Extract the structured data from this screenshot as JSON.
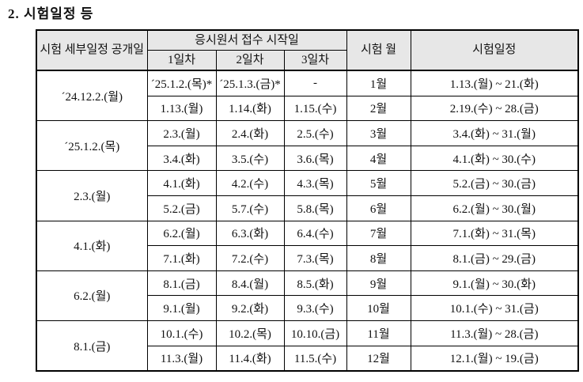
{
  "section": {
    "title": "2. 시험일정 등"
  },
  "table": {
    "header": {
      "release": "시험 세부일정 공개일",
      "application": "응시원서 접수 시작일",
      "day1": "1일차",
      "day2": "2일차",
      "day3": "3일차",
      "month": "시험 월",
      "schedule": "시험일정"
    },
    "releases": [
      "´24.12.2.(월)",
      "´25.1.2.(목)",
      "2.3.(월)",
      "4.1.(화)",
      "6.2.(월)",
      "8.1.(금)"
    ],
    "rows": [
      {
        "day1": "´25.1.2.(목)*",
        "day2": "´25.1.3.(금)*",
        "day3": "-",
        "month": "1월",
        "schedule": "1.13.(월) ~ 21.(화)"
      },
      {
        "day1": "1.13.(월)",
        "day2": "1.14.(화)",
        "day3": "1.15.(수)",
        "month": "2월",
        "schedule": "2.19.(수) ~ 28.(금)"
      },
      {
        "day1": "2.3.(월)",
        "day2": "2.4.(화)",
        "day3": "2.5.(수)",
        "month": "3월",
        "schedule": "3.4.(화) ~ 31.(월)"
      },
      {
        "day1": "3.4.(화)",
        "day2": "3.5.(수)",
        "day3": "3.6.(목)",
        "month": "4월",
        "schedule": "4.1.(화) ~ 30.(수)"
      },
      {
        "day1": "4.1.(화)",
        "day2": "4.2.(수)",
        "day3": "4.3.(목)",
        "month": "5월",
        "schedule": "5.2.(금) ~ 30.(금)"
      },
      {
        "day1": "5.2.(금)",
        "day2": "5.7.(수)",
        "day3": "5.8.(목)",
        "month": "6월",
        "schedule": "6.2.(월) ~ 30.(월)"
      },
      {
        "day1": "6.2.(월)",
        "day2": "6.3.(화)",
        "day3": "6.4.(수)",
        "month": "7월",
        "schedule": "7.1.(화) ~ 31.(목)"
      },
      {
        "day1": "7.1.(화)",
        "day2": "7.2.(수)",
        "day3": "7.3.(목)",
        "month": "8월",
        "schedule": "8.1.(금) ~ 29.(금)"
      },
      {
        "day1": "8.1.(금)",
        "day2": "8.4.(월)",
        "day3": "8.5.(화)",
        "month": "9월",
        "schedule": "9.1.(월) ~ 30.(화)"
      },
      {
        "day1": "9.1.(월)",
        "day2": "9.2.(화)",
        "day3": "9.3.(수)",
        "month": "10월",
        "schedule": "10.1.(수) ~ 31.(금)"
      },
      {
        "day1": "10.1.(수)",
        "day2": "10.2.(목)",
        "day3": "10.10.(금)",
        "month": "11월",
        "schedule": "11.3.(월) ~ 28.(금)"
      },
      {
        "day1": "11.3.(월)",
        "day2": "11.4.(화)",
        "day3": "11.5.(수)",
        "month": "12월",
        "schedule": "12.1.(월) ~ 19.(금)"
      }
    ],
    "colors": {
      "header_bg": "#e7e7e7",
      "border": "#000000",
      "text": "#111111"
    }
  }
}
